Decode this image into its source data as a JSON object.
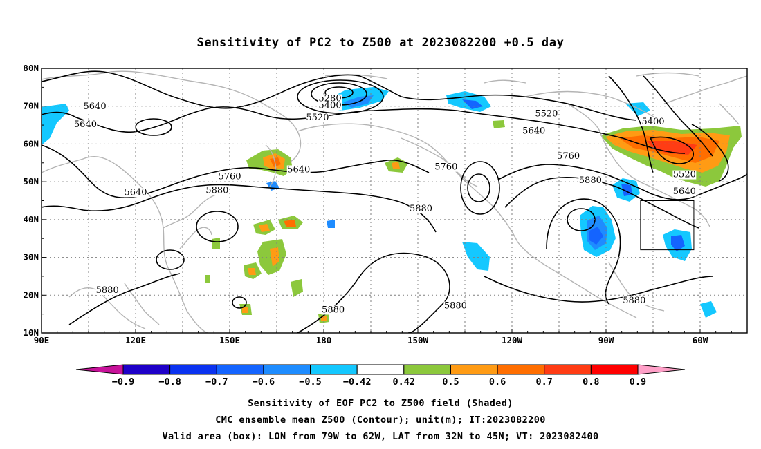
{
  "title": "Sensitivity of PC2 to Z500 at 2023082200 +0.5 day",
  "map": {
    "lat_ticks": [
      "80N",
      "70N",
      "60N",
      "50N",
      "40N",
      "30N",
      "20N",
      "10N"
    ],
    "lon_ticks": [
      "90E",
      "120E",
      "150E",
      "180",
      "150W",
      "120W",
      "90W",
      "60W"
    ],
    "extent": {
      "lon_min_east": 90,
      "lon_max_east": 315,
      "lat_min": 10,
      "lat_max": 80
    },
    "grid": true
  },
  "contours": {
    "labels": [
      {
        "text": "5640",
        "lon": 107,
        "lat": 69.2
      },
      {
        "text": "5640",
        "lon": 104,
        "lat": 64.5
      },
      {
        "text": "5280",
        "lon": 182,
        "lat": 71.3
      },
      {
        "text": "5400",
        "lon": 182,
        "lat": 69.5
      },
      {
        "text": "5520",
        "lon": 178,
        "lat": 66.3
      },
      {
        "text": "5640",
        "lon": 172,
        "lat": 52.5
      },
      {
        "text": "5760",
        "lon": 150,
        "lat": 50.7
      },
      {
        "text": "5640",
        "lon": 120,
        "lat": 46.5
      },
      {
        "text": "5880",
        "lon": 146,
        "lat": 47.0
      },
      {
        "text": "5760",
        "lon": 219,
        "lat": 53.2
      },
      {
        "text": "5880",
        "lon": 211,
        "lat": 42.2
      },
      {
        "text": "5520",
        "lon": 251,
        "lat": 67.3
      },
      {
        "text": "5640",
        "lon": 247,
        "lat": 62.7
      },
      {
        "text": "5760",
        "lon": 258,
        "lat": 56.1
      },
      {
        "text": "5880",
        "lon": 265,
        "lat": 49.7
      },
      {
        "text": "5400",
        "lon": 285,
        "lat": 65.2
      },
      {
        "text": "5520",
        "lon": 295,
        "lat": 51.2
      },
      {
        "text": "5640",
        "lon": 295,
        "lat": 46.7
      },
      {
        "text": "5880",
        "lon": 111,
        "lat": 20.6
      },
      {
        "text": "5880",
        "lon": 183,
        "lat": 15.4
      },
      {
        "text": "5880",
        "lon": 222,
        "lat": 16.5
      },
      {
        "text": "5880",
        "lon": 279,
        "lat": 17.9
      }
    ]
  },
  "valid_box": {
    "lon_west": 79,
    "lon_east": 62,
    "lat_south": 32,
    "lat_north": 45
  },
  "colorbar": {
    "labels": [
      "−0.9",
      "−0.8",
      "−0.7",
      "−0.6",
      "−0.5",
      "−0.42",
      "0.42",
      "0.5",
      "0.6",
      "0.7",
      "0.8",
      "0.9"
    ],
    "colors": [
      "#c8129a",
      "#1e00c8",
      "#0a32f0",
      "#1464ff",
      "#1e8cff",
      "#14c8ff",
      "#ffffff",
      "#8cc83c",
      "#ff9b14",
      "#ff6e00",
      "#ff3c14",
      "#ff0000",
      "#ffa0c8"
    ]
  },
  "footer": {
    "line1": "Sensitivity of EOF PC2 to Z500 field (Shaded)",
    "line2": "CMC ensemble mean Z500 (Contour); unit(m); IT:2023082200",
    "line3": "Valid area (box): LON from 79W to 62W, LAT from 32N to 45N; VT: 2023082400"
  }
}
